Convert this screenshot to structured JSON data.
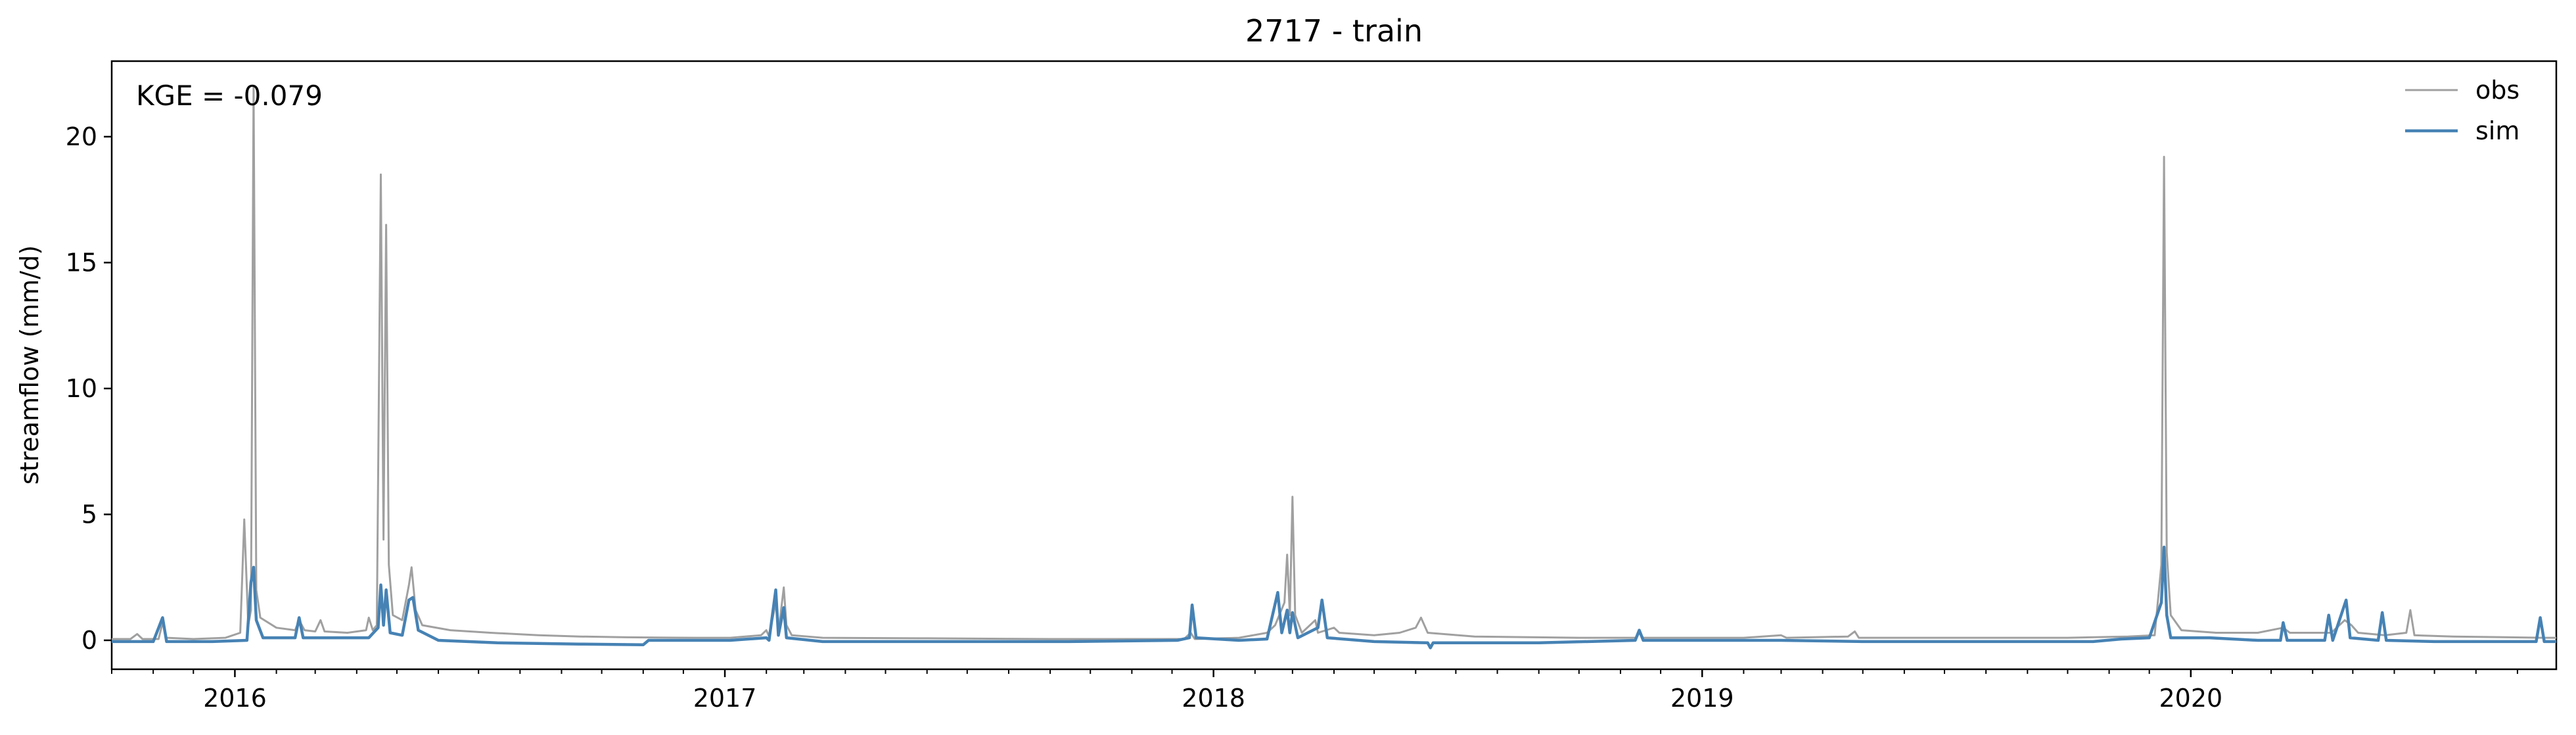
{
  "chart_data": {
    "type": "line",
    "title": "2717 - train",
    "xlabel": "",
    "ylabel": "streamflow (mm/d)",
    "ylim": [
      -1.15,
      23.0
    ],
    "xlim": [
      "2015-10-01",
      "2020-09-30"
    ],
    "yticks": [
      0,
      5,
      10,
      15,
      20
    ],
    "yticklabels": [
      "0",
      "5",
      "10",
      "15",
      "20"
    ],
    "xticks": [
      "2016-01-01",
      "2017-01-01",
      "2018-01-01",
      "2019-01-01",
      "2020-01-01"
    ],
    "xticklabels": [
      "2016",
      "2017",
      "2018",
      "2019",
      "2020"
    ],
    "annotation": "KGE = -0.079",
    "grid": false,
    "legend": "upper right",
    "series": [
      {
        "name": "obs",
        "color": "#a0a0a0",
        "points": [
          [
            "2015-10-01",
            0.05
          ],
          [
            "2015-10-15",
            0.05
          ],
          [
            "2015-10-20",
            0.25
          ],
          [
            "2015-10-24",
            0.05
          ],
          [
            "2015-11-05",
            0.05
          ],
          [
            "2015-11-08",
            0.7
          ],
          [
            "2015-11-11",
            0.1
          ],
          [
            "2015-12-01",
            0.05
          ],
          [
            "2015-12-25",
            0.1
          ],
          [
            "2016-01-05",
            0.3
          ],
          [
            "2016-01-08",
            4.8
          ],
          [
            "2016-01-11",
            0.6
          ],
          [
            "2016-01-13",
            1.2
          ],
          [
            "2016-01-15",
            22.0
          ],
          [
            "2016-01-17",
            2.0
          ],
          [
            "2016-01-20",
            0.9
          ],
          [
            "2016-02-01",
            0.5
          ],
          [
            "2016-02-15",
            0.4
          ],
          [
            "2016-02-18",
            0.8
          ],
          [
            "2016-02-22",
            0.4
          ],
          [
            "2016-03-01",
            0.35
          ],
          [
            "2016-03-05",
            0.8
          ],
          [
            "2016-03-08",
            0.35
          ],
          [
            "2016-03-25",
            0.3
          ],
          [
            "2016-04-08",
            0.4
          ],
          [
            "2016-04-10",
            0.9
          ],
          [
            "2016-04-13",
            0.4
          ],
          [
            "2016-04-16",
            0.6
          ],
          [
            "2016-04-19",
            18.5
          ],
          [
            "2016-04-21",
            4.0
          ],
          [
            "2016-04-23",
            16.5
          ],
          [
            "2016-04-25",
            3.0
          ],
          [
            "2016-04-28",
            1.0
          ],
          [
            "2016-05-05",
            0.8
          ],
          [
            "2016-05-10",
            2.2
          ],
          [
            "2016-05-12",
            2.9
          ],
          [
            "2016-05-15",
            1.2
          ],
          [
            "2016-05-20",
            0.6
          ],
          [
            "2016-06-10",
            0.4
          ],
          [
            "2016-07-10",
            0.3
          ],
          [
            "2016-08-15",
            0.2
          ],
          [
            "2016-09-15",
            0.15
          ],
          [
            "2016-10-20",
            0.12
          ],
          [
            "2016-12-10",
            0.1
          ],
          [
            "2017-01-05",
            0.1
          ],
          [
            "2017-01-28",
            0.2
          ],
          [
            "2017-02-01",
            0.4
          ],
          [
            "2017-02-03",
            0.15
          ],
          [
            "2017-02-08",
            1.5
          ],
          [
            "2017-02-10",
            0.3
          ],
          [
            "2017-02-14",
            2.1
          ],
          [
            "2017-02-16",
            0.6
          ],
          [
            "2017-02-20",
            0.2
          ],
          [
            "2017-03-15",
            0.1
          ],
          [
            "2017-06-01",
            0.08
          ],
          [
            "2017-09-01",
            0.05
          ],
          [
            "2017-12-10",
            0.05
          ],
          [
            "2017-12-15",
            0.3
          ],
          [
            "2017-12-18",
            0.05
          ],
          [
            "2018-01-20",
            0.1
          ],
          [
            "2018-02-10",
            0.3
          ],
          [
            "2018-02-16",
            0.6
          ],
          [
            "2018-02-23",
            1.5
          ],
          [
            "2018-02-25",
            3.4
          ],
          [
            "2018-02-27",
            1.0
          ],
          [
            "2018-03-01",
            5.7
          ],
          [
            "2018-03-03",
            1.0
          ],
          [
            "2018-03-08",
            0.3
          ],
          [
            "2018-03-18",
            0.8
          ],
          [
            "2018-03-20",
            0.3
          ],
          [
            "2018-04-01",
            0.5
          ],
          [
            "2018-04-05",
            0.3
          ],
          [
            "2018-05-01",
            0.2
          ],
          [
            "2018-05-20",
            0.3
          ],
          [
            "2018-06-01",
            0.5
          ],
          [
            "2018-06-05",
            0.9
          ],
          [
            "2018-06-10",
            0.3
          ],
          [
            "2018-07-15",
            0.15
          ],
          [
            "2018-10-01",
            0.1
          ],
          [
            "2018-11-13",
            0.1
          ],
          [
            "2018-11-15",
            0.3
          ],
          [
            "2018-11-18",
            0.1
          ],
          [
            "2019-02-01",
            0.1
          ],
          [
            "2019-03-01",
            0.2
          ],
          [
            "2019-03-05",
            0.1
          ],
          [
            "2019-04-20",
            0.15
          ],
          [
            "2019-04-25",
            0.35
          ],
          [
            "2019-04-28",
            0.1
          ],
          [
            "2019-07-01",
            0.1
          ],
          [
            "2019-10-01",
            0.1
          ],
          [
            "2019-11-15",
            0.15
          ],
          [
            "2019-12-05",
            0.2
          ],
          [
            "2019-12-10",
            3.0
          ],
          [
            "2019-12-12",
            19.2
          ],
          [
            "2019-12-14",
            3.5
          ],
          [
            "2019-12-17",
            1.0
          ],
          [
            "2019-12-25",
            0.4
          ],
          [
            "2020-01-20",
            0.3
          ],
          [
            "2020-02-20",
            0.3
          ],
          [
            "2020-03-10",
            0.5
          ],
          [
            "2020-03-15",
            0.3
          ],
          [
            "2020-04-15",
            0.3
          ],
          [
            "2020-04-25",
            0.8
          ],
          [
            "2020-04-30",
            0.6
          ],
          [
            "2020-05-05",
            0.3
          ],
          [
            "2020-05-25",
            0.2
          ],
          [
            "2020-06-10",
            0.3
          ],
          [
            "2020-06-13",
            1.2
          ],
          [
            "2020-06-16",
            0.2
          ],
          [
            "2020-07-15",
            0.15
          ],
          [
            "2020-09-20",
            0.1
          ],
          [
            "2020-09-30",
            0.1
          ]
        ]
      },
      {
        "name": "sim",
        "color": "#4682b4",
        "points": [
          [
            "2015-10-01",
            -0.05
          ],
          [
            "2015-11-01",
            -0.05
          ],
          [
            "2015-11-08",
            0.9
          ],
          [
            "2015-11-11",
            -0.05
          ],
          [
            "2015-12-15",
            -0.05
          ],
          [
            "2016-01-10",
            0.0
          ],
          [
            "2016-01-13",
            2.3
          ],
          [
            "2016-01-15",
            2.9
          ],
          [
            "2016-01-17",
            0.8
          ],
          [
            "2016-01-22",
            0.1
          ],
          [
            "2016-02-15",
            0.1
          ],
          [
            "2016-02-18",
            0.9
          ],
          [
            "2016-02-21",
            0.1
          ],
          [
            "2016-03-20",
            0.1
          ],
          [
            "2016-04-10",
            0.1
          ],
          [
            "2016-04-17",
            0.5
          ],
          [
            "2016-04-19",
            2.2
          ],
          [
            "2016-04-21",
            0.6
          ],
          [
            "2016-04-23",
            2.0
          ],
          [
            "2016-04-26",
            0.3
          ],
          [
            "2016-05-05",
            0.2
          ],
          [
            "2016-05-10",
            1.6
          ],
          [
            "2016-05-13",
            1.7
          ],
          [
            "2016-05-17",
            0.4
          ],
          [
            "2016-06-01",
            0.0
          ],
          [
            "2016-07-15",
            -0.1
          ],
          [
            "2016-09-15",
            -0.15
          ],
          [
            "2016-11-01",
            -0.18
          ],
          [
            "2016-11-05",
            0.0
          ],
          [
            "2017-01-05",
            0.0
          ],
          [
            "2017-02-01",
            0.1
          ],
          [
            "2017-02-03",
            0.0
          ],
          [
            "2017-02-08",
            2.0
          ],
          [
            "2017-02-10",
            0.2
          ],
          [
            "2017-02-14",
            1.3
          ],
          [
            "2017-02-16",
            0.1
          ],
          [
            "2017-03-15",
            -0.05
          ],
          [
            "2017-06-15",
            -0.05
          ],
          [
            "2017-09-15",
            -0.05
          ],
          [
            "2017-12-05",
            0.0
          ],
          [
            "2017-12-14",
            0.1
          ],
          [
            "2017-12-16",
            1.4
          ],
          [
            "2017-12-19",
            0.1
          ],
          [
            "2018-01-20",
            0.0
          ],
          [
            "2018-02-10",
            0.05
          ],
          [
            "2018-02-18",
            1.9
          ],
          [
            "2018-02-21",
            0.3
          ],
          [
            "2018-02-25",
            1.2
          ],
          [
            "2018-02-27",
            0.3
          ],
          [
            "2018-03-01",
            1.1
          ],
          [
            "2018-03-05",
            0.1
          ],
          [
            "2018-03-20",
            0.5
          ],
          [
            "2018-03-23",
            1.6
          ],
          [
            "2018-03-27",
            0.1
          ],
          [
            "2018-05-01",
            -0.05
          ],
          [
            "2018-06-10",
            -0.1
          ],
          [
            "2018-06-12",
            -0.3
          ],
          [
            "2018-06-14",
            -0.1
          ],
          [
            "2018-09-01",
            -0.1
          ],
          [
            "2018-11-12",
            0.0
          ],
          [
            "2018-11-15",
            0.4
          ],
          [
            "2018-11-18",
            0.0
          ],
          [
            "2019-01-15",
            0.0
          ],
          [
            "2019-03-01",
            0.0
          ],
          [
            "2019-05-01",
            -0.05
          ],
          [
            "2019-08-15",
            -0.05
          ],
          [
            "2019-10-20",
            -0.05
          ],
          [
            "2019-11-10",
            0.05
          ],
          [
            "2019-12-01",
            0.1
          ],
          [
            "2019-12-10",
            1.5
          ],
          [
            "2019-12-12",
            3.7
          ],
          [
            "2019-12-14",
            1.0
          ],
          [
            "2019-12-17",
            0.1
          ],
          [
            "2020-01-15",
            0.1
          ],
          [
            "2020-02-20",
            0.0
          ],
          [
            "2020-03-08",
            0.0
          ],
          [
            "2020-03-10",
            0.7
          ],
          [
            "2020-03-13",
            0.0
          ],
          [
            "2020-04-10",
            0.0
          ],
          [
            "2020-04-13",
            1.0
          ],
          [
            "2020-04-16",
            0.0
          ],
          [
            "2020-04-26",
            1.6
          ],
          [
            "2020-04-29",
            0.1
          ],
          [
            "2020-05-20",
            0.0
          ],
          [
            "2020-05-23",
            1.1
          ],
          [
            "2020-05-26",
            0.0
          ],
          [
            "2020-07-01",
            -0.05
          ],
          [
            "2020-09-15",
            -0.05
          ],
          [
            "2020-09-18",
            0.9
          ],
          [
            "2020-09-21",
            -0.05
          ],
          [
            "2020-09-30",
            -0.05
          ]
        ]
      }
    ]
  }
}
